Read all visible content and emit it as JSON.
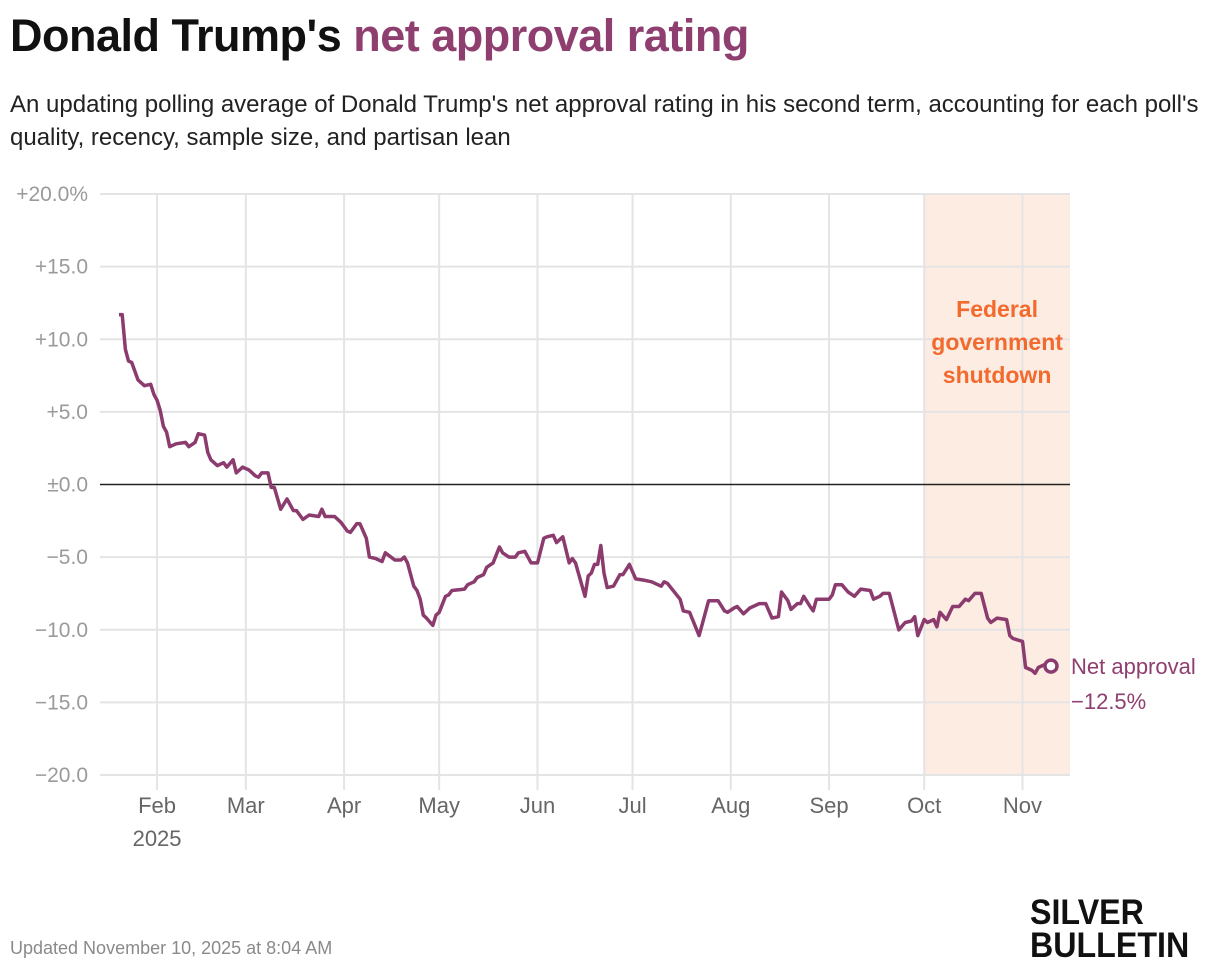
{
  "header": {
    "title_plain": "Donald Trump's ",
    "title_highlight": "net approval rating",
    "subtitle": "An updating polling average of Donald Trump's net approval rating in his second term, accounting for each poll's quality, recency, sample size, and partisan lean"
  },
  "footer": {
    "updated": "Updated November 10, 2025 at 8:04 AM",
    "logo_line1": "SILVER",
    "logo_line2": "BULLETIN"
  },
  "colors": {
    "line": "#8b3b6e",
    "title_accent": "#8e3f6f",
    "shutdown_text": "#f26a2e",
    "shutdown_fill": "#fdece2",
    "grid": "#e4e4e4",
    "zero_line": "#222222"
  },
  "chart_data": {
    "type": "line",
    "title": "",
    "xlabel": "",
    "ylabel": "",
    "xlim": [
      "2025-01-14",
      "2025-11-16"
    ],
    "ylim": [
      -20,
      20
    ],
    "grid": true,
    "y_ticks": [
      {
        "value": 20,
        "label": "+20.0%"
      },
      {
        "value": 15,
        "label": "+15.0"
      },
      {
        "value": 10,
        "label": "+10.0"
      },
      {
        "value": 5,
        "label": "+5.0"
      },
      {
        "value": 0,
        "label": "±0.0"
      },
      {
        "value": -5,
        "label": "−5.0"
      },
      {
        "value": -10,
        "label": "−10.0"
      },
      {
        "value": -15,
        "label": "−15.0"
      },
      {
        "value": -20,
        "label": "−20.0"
      }
    ],
    "x_ticks": [
      {
        "date": "2025-02-01",
        "label": "Feb",
        "sublabel": "2025"
      },
      {
        "date": "2025-03-01",
        "label": "Mar"
      },
      {
        "date": "2025-04-01",
        "label": "Apr"
      },
      {
        "date": "2025-05-01",
        "label": "May"
      },
      {
        "date": "2025-06-01",
        "label": "Jun"
      },
      {
        "date": "2025-07-01",
        "label": "Jul"
      },
      {
        "date": "2025-08-01",
        "label": "Aug"
      },
      {
        "date": "2025-09-01",
        "label": "Sep"
      },
      {
        "date": "2025-10-01",
        "label": "Oct"
      },
      {
        "date": "2025-11-01",
        "label": "Nov"
      }
    ],
    "shaded_region": {
      "start": "2025-10-01",
      "end": "2025-11-16",
      "label_lines": [
        "Federal",
        "government",
        "shutdown"
      ]
    },
    "end_label": {
      "name": "Net approval",
      "value_label": "−12.5%"
    },
    "series": [
      {
        "name": "Net approval",
        "points": [
          [
            "2025-01-20",
            11.7
          ],
          [
            "2025-01-21",
            11.7
          ],
          [
            "2025-01-22",
            9.3
          ],
          [
            "2025-01-23",
            8.5
          ],
          [
            "2025-01-24",
            8.4
          ],
          [
            "2025-01-26",
            7.2
          ],
          [
            "2025-01-28",
            6.8
          ],
          [
            "2025-01-30",
            6.9
          ],
          [
            "2025-01-31",
            6.2
          ],
          [
            "2025-02-01",
            5.8
          ],
          [
            "2025-02-02",
            5.1
          ],
          [
            "2025-02-03",
            4.0
          ],
          [
            "2025-02-04",
            3.6
          ],
          [
            "2025-02-05",
            2.6
          ],
          [
            "2025-02-07",
            2.8
          ],
          [
            "2025-02-10",
            2.9
          ],
          [
            "2025-02-11",
            2.6
          ],
          [
            "2025-02-13",
            2.9
          ],
          [
            "2025-02-14",
            3.5
          ],
          [
            "2025-02-16",
            3.4
          ],
          [
            "2025-02-17",
            2.2
          ],
          [
            "2025-02-18",
            1.7
          ],
          [
            "2025-02-20",
            1.3
          ],
          [
            "2025-02-22",
            1.5
          ],
          [
            "2025-02-23",
            1.2
          ],
          [
            "2025-02-25",
            1.7
          ],
          [
            "2025-02-26",
            0.8
          ],
          [
            "2025-02-28",
            1.2
          ],
          [
            "2025-03-02",
            1.0
          ],
          [
            "2025-03-04",
            0.6
          ],
          [
            "2025-03-05",
            0.5
          ],
          [
            "2025-03-06",
            0.8
          ],
          [
            "2025-03-08",
            0.8
          ],
          [
            "2025-03-09",
            -0.2
          ],
          [
            "2025-03-10",
            -0.2
          ],
          [
            "2025-03-12",
            -1.7
          ],
          [
            "2025-03-14",
            -1.0
          ],
          [
            "2025-03-16",
            -1.8
          ],
          [
            "2025-03-17",
            -1.8
          ],
          [
            "2025-03-19",
            -2.4
          ],
          [
            "2025-03-21",
            -2.1
          ],
          [
            "2025-03-24",
            -2.2
          ],
          [
            "2025-03-25",
            -1.7
          ],
          [
            "2025-03-26",
            -2.2
          ],
          [
            "2025-03-29",
            -2.2
          ],
          [
            "2025-03-31",
            -2.6
          ],
          [
            "2025-04-02",
            -3.2
          ],
          [
            "2025-04-03",
            -3.3
          ],
          [
            "2025-04-05",
            -2.7
          ],
          [
            "2025-04-06",
            -2.7
          ],
          [
            "2025-04-08",
            -3.7
          ],
          [
            "2025-04-09",
            -5.0
          ],
          [
            "2025-04-11",
            -5.1
          ],
          [
            "2025-04-13",
            -5.3
          ],
          [
            "2025-04-14",
            -4.7
          ],
          [
            "2025-04-17",
            -5.2
          ],
          [
            "2025-04-19",
            -5.2
          ],
          [
            "2025-04-20",
            -5.0
          ],
          [
            "2025-04-21",
            -5.4
          ],
          [
            "2025-04-23",
            -7.0
          ],
          [
            "2025-04-24",
            -7.3
          ],
          [
            "2025-04-25",
            -7.9
          ],
          [
            "2025-04-26",
            -9.0
          ],
          [
            "2025-04-27",
            -9.2
          ],
          [
            "2025-04-29",
            -9.7
          ],
          [
            "2025-04-30",
            -9.0
          ],
          [
            "2025-05-01",
            -8.8
          ],
          [
            "2025-05-03",
            -7.7
          ],
          [
            "2025-05-04",
            -7.6
          ],
          [
            "2025-05-05",
            -7.3
          ],
          [
            "2025-05-09",
            -7.2
          ],
          [
            "2025-05-10",
            -6.9
          ],
          [
            "2025-05-12",
            -6.7
          ],
          [
            "2025-05-13",
            -6.4
          ],
          [
            "2025-05-15",
            -6.2
          ],
          [
            "2025-05-16",
            -5.7
          ],
          [
            "2025-05-18",
            -5.4
          ],
          [
            "2025-05-20",
            -4.3
          ],
          [
            "2025-05-21",
            -4.7
          ],
          [
            "2025-05-23",
            -5.0
          ],
          [
            "2025-05-25",
            -5.0
          ],
          [
            "2025-05-26",
            -4.7
          ],
          [
            "2025-05-28",
            -4.6
          ],
          [
            "2025-05-30",
            -5.4
          ],
          [
            "2025-06-01",
            -5.4
          ],
          [
            "2025-06-03",
            -3.7
          ],
          [
            "2025-06-04",
            -3.6
          ],
          [
            "2025-06-06",
            -3.5
          ],
          [
            "2025-06-07",
            -4.0
          ],
          [
            "2025-06-09",
            -3.6
          ],
          [
            "2025-06-11",
            -5.4
          ],
          [
            "2025-06-12",
            -5.1
          ],
          [
            "2025-06-13",
            -5.4
          ],
          [
            "2025-06-16",
            -7.7
          ],
          [
            "2025-06-17",
            -6.3
          ],
          [
            "2025-06-18",
            -6.1
          ],
          [
            "2025-06-19",
            -5.5
          ],
          [
            "2025-06-20",
            -5.5
          ],
          [
            "2025-06-21",
            -4.2
          ],
          [
            "2025-06-22",
            -6.1
          ],
          [
            "2025-06-23",
            -7.1
          ],
          [
            "2025-06-25",
            -7.0
          ],
          [
            "2025-06-27",
            -6.2
          ],
          [
            "2025-06-28",
            -6.2
          ],
          [
            "2025-06-30",
            -5.5
          ],
          [
            "2025-07-02",
            -6.5
          ],
          [
            "2025-07-05",
            -6.6
          ],
          [
            "2025-07-07",
            -6.7
          ],
          [
            "2025-07-10",
            -7.0
          ],
          [
            "2025-07-11",
            -6.7
          ],
          [
            "2025-07-12",
            -6.8
          ],
          [
            "2025-07-16",
            -7.9
          ],
          [
            "2025-07-17",
            -8.7
          ],
          [
            "2025-07-19",
            -8.8
          ],
          [
            "2025-07-22",
            -10.4
          ],
          [
            "2025-07-23",
            -9.6
          ],
          [
            "2025-07-25",
            -8.0
          ],
          [
            "2025-07-28",
            -8.0
          ],
          [
            "2025-07-30",
            -8.7
          ],
          [
            "2025-07-31",
            -8.8
          ],
          [
            "2025-08-02",
            -8.5
          ],
          [
            "2025-08-03",
            -8.4
          ],
          [
            "2025-08-05",
            -8.9
          ],
          [
            "2025-08-07",
            -8.5
          ],
          [
            "2025-08-10",
            -8.2
          ],
          [
            "2025-08-12",
            -8.2
          ],
          [
            "2025-08-14",
            -9.2
          ],
          [
            "2025-08-16",
            -9.1
          ],
          [
            "2025-08-17",
            -7.4
          ],
          [
            "2025-08-19",
            -8.0
          ],
          [
            "2025-08-20",
            -8.6
          ],
          [
            "2025-08-22",
            -8.2
          ],
          [
            "2025-08-23",
            -8.2
          ],
          [
            "2025-08-24",
            -7.7
          ],
          [
            "2025-08-26",
            -8.4
          ],
          [
            "2025-08-27",
            -8.7
          ],
          [
            "2025-08-28",
            -7.9
          ],
          [
            "2025-09-01",
            -7.9
          ],
          [
            "2025-09-02",
            -7.6
          ],
          [
            "2025-09-03",
            -6.9
          ],
          [
            "2025-09-05",
            -6.9
          ],
          [
            "2025-09-07",
            -7.4
          ],
          [
            "2025-09-09",
            -7.7
          ],
          [
            "2025-09-11",
            -7.2
          ],
          [
            "2025-09-14",
            -7.3
          ],
          [
            "2025-09-15",
            -7.9
          ],
          [
            "2025-09-17",
            -7.7
          ],
          [
            "2025-09-18",
            -7.5
          ],
          [
            "2025-09-20",
            -7.5
          ],
          [
            "2025-09-23",
            -10.0
          ],
          [
            "2025-09-25",
            -9.5
          ],
          [
            "2025-09-27",
            -9.4
          ],
          [
            "2025-09-28",
            -9.1
          ],
          [
            "2025-09-29",
            -10.4
          ],
          [
            "2025-10-01",
            -9.3
          ],
          [
            "2025-10-02",
            -9.5
          ],
          [
            "2025-10-04",
            -9.3
          ],
          [
            "2025-10-05",
            -9.8
          ],
          [
            "2025-10-06",
            -8.8
          ],
          [
            "2025-10-08",
            -9.3
          ],
          [
            "2025-10-10",
            -8.4
          ],
          [
            "2025-10-12",
            -8.4
          ],
          [
            "2025-10-14",
            -7.9
          ],
          [
            "2025-10-15",
            -8.0
          ],
          [
            "2025-10-17",
            -7.5
          ],
          [
            "2025-10-19",
            -7.5
          ],
          [
            "2025-10-21",
            -9.2
          ],
          [
            "2025-10-22",
            -9.5
          ],
          [
            "2025-10-24",
            -9.2
          ],
          [
            "2025-10-27",
            -9.3
          ],
          [
            "2025-10-28",
            -10.4
          ],
          [
            "2025-10-29",
            -10.6
          ],
          [
            "2025-11-01",
            -10.8
          ],
          [
            "2025-11-02",
            -12.6
          ],
          [
            "2025-11-04",
            -12.8
          ],
          [
            "2025-11-05",
            -13.0
          ],
          [
            "2025-11-06",
            -12.6
          ],
          [
            "2025-11-08",
            -12.4
          ],
          [
            "2025-11-10",
            -12.5
          ]
        ]
      }
    ]
  }
}
